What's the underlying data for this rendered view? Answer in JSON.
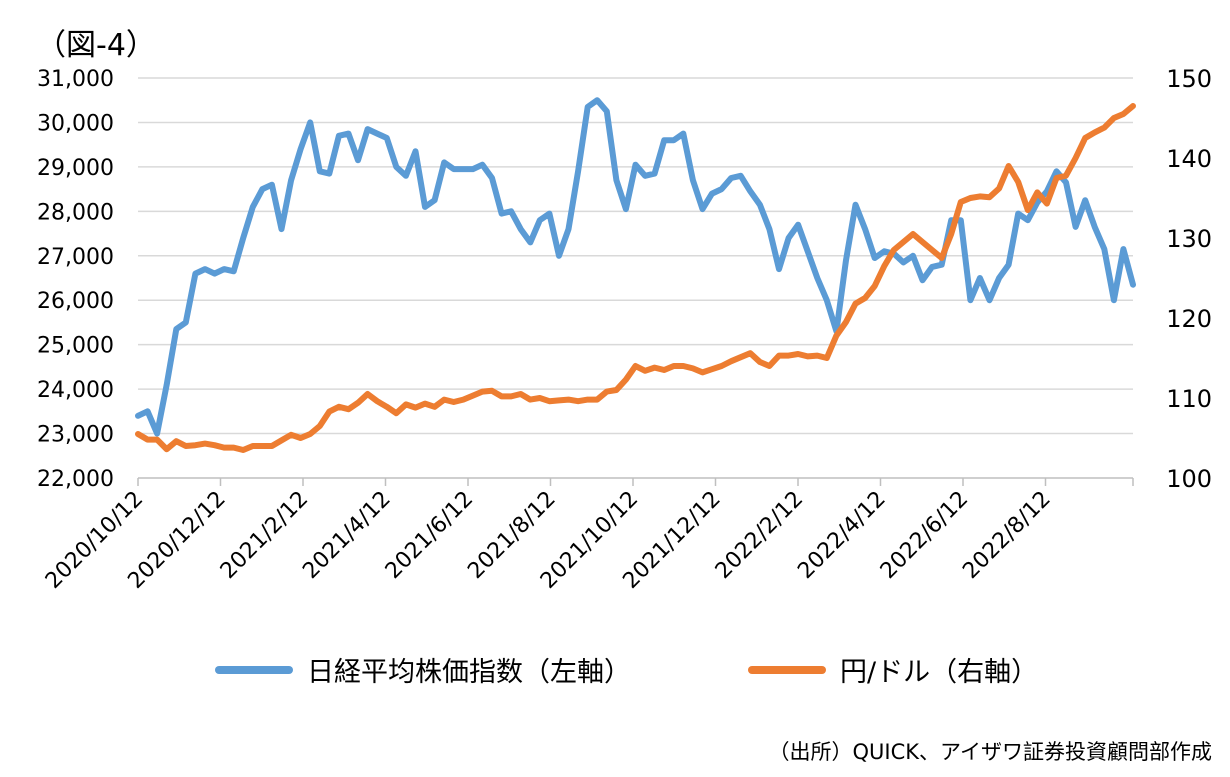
{
  "figure_label": "（図-4）",
  "source_note": "（出所）QUICK、アイザワ証券投資顧問部作成",
  "legend": [
    {
      "label": "日経平均株価指数（左軸）",
      "color": "#5b9bd5"
    },
    {
      "label": "円/ドル（右軸）",
      "color": "#ed7d31"
    }
  ],
  "chart_data": {
    "type": "line",
    "grid": "horizontal",
    "legend_position": "bottom",
    "x_tick_labels": [
      "2020/10/12",
      "2020/12/12",
      "2021/2/12",
      "2021/4/12",
      "2021/6/12",
      "2021/8/12",
      "2021/10/12",
      "2021/12/12",
      "2022/2/12",
      "2022/4/12",
      "2022/6/12",
      "2022/8/12"
    ],
    "y_left": {
      "min": 22000,
      "max": 31000,
      "ticks": [
        "22,000",
        "23,000",
        "24,000",
        "25,000",
        "26,000",
        "27,000",
        "28,000",
        "29,000",
        "30,000",
        "31,000"
      ]
    },
    "y_right": {
      "min": 100,
      "max": 150,
      "ticks": [
        "100",
        "110",
        "120",
        "130",
        "140",
        "150"
      ]
    },
    "series": [
      {
        "name": "日経平均株価指数（左軸）",
        "axis": "left",
        "color": "#5b9bd5",
        "values": [
          23400,
          23500,
          23000,
          24100,
          25350,
          25500,
          26600,
          26700,
          26600,
          26700,
          26650,
          27400,
          28100,
          28500,
          28600,
          27600,
          28700,
          29400,
          30000,
          28900,
          28850,
          29700,
          29750,
          29150,
          29850,
          29750,
          29650,
          29000,
          28800,
          29350,
          28100,
          28250,
          29100,
          28950,
          28950,
          28950,
          29050,
          28750,
          27950,
          28000,
          27600,
          27300,
          27800,
          27950,
          27000,
          27600,
          28900,
          30350,
          30500,
          30250,
          28700,
          28050,
          29050,
          28800,
          28850,
          29600,
          29600,
          29750,
          28700,
          28050,
          28400,
          28500,
          28750,
          28800,
          28450,
          28150,
          27600,
          26700,
          27400,
          27700,
          27100,
          26500,
          26000,
          25300,
          26900,
          28150,
          27600,
          26950,
          27100,
          27050,
          26850,
          27000,
          26450,
          26750,
          26800,
          27800,
          27800,
          26000,
          26500,
          26000,
          26500,
          26800,
          27950,
          27800,
          28200,
          28450,
          28900,
          28650,
          27650,
          28250,
          27650,
          27150,
          26000,
          27150,
          26350
        ]
      },
      {
        "name": "円/ドル（右軸）",
        "axis": "right",
        "color": "#ed7d31",
        "values": [
          105.5,
          104.8,
          104.8,
          103.6,
          104.6,
          104.0,
          104.1,
          104.3,
          104.1,
          103.8,
          103.8,
          103.5,
          104.0,
          104.0,
          104.0,
          104.7,
          105.4,
          105.0,
          105.5,
          106.5,
          108.3,
          108.9,
          108.6,
          109.4,
          110.5,
          109.6,
          108.9,
          108.1,
          109.2,
          108.8,
          109.3,
          108.9,
          109.8,
          109.5,
          109.8,
          110.3,
          110.8,
          110.9,
          110.2,
          110.2,
          110.5,
          109.8,
          110.0,
          109.6,
          109.7,
          109.8,
          109.6,
          109.8,
          109.8,
          110.8,
          111.0,
          112.3,
          114.0,
          113.4,
          113.8,
          113.5,
          114.0,
          114.0,
          113.7,
          113.2,
          113.6,
          114.0,
          114.6,
          115.1,
          115.6,
          114.5,
          114.0,
          115.3,
          115.3,
          115.5,
          115.2,
          115.3,
          115.0,
          117.8,
          119.5,
          121.8,
          122.5,
          124.0,
          126.5,
          128.5,
          129.5,
          130.5,
          129.5,
          128.5,
          127.5,
          130.5,
          134.5,
          135.0,
          135.2,
          135.1,
          136.2,
          139.0,
          137.0,
          133.5,
          135.7,
          134.3,
          137.5,
          137.8,
          140.0,
          142.5,
          143.2,
          143.8,
          145.0,
          145.5,
          146.5
        ]
      }
    ]
  }
}
